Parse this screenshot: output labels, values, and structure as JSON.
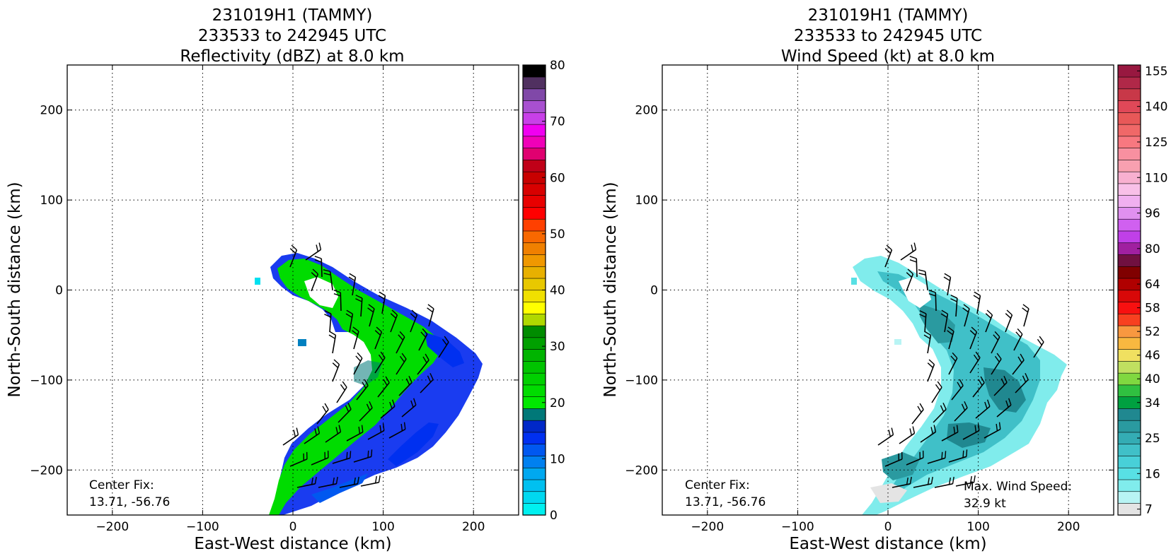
{
  "chart_data": [
    {
      "type": "heatmap",
      "title": [
        "231019H1 (TAMMY)",
        "233533 to 242945 UTC",
        "Reflectivity (dBZ) at 8.0 km"
      ],
      "xlabel": "East-West distance (km)",
      "ylabel": "North-South distance (km)",
      "xlim": [
        -250,
        250
      ],
      "ylim": [
        -250,
        250
      ],
      "xticks": [
        "−200",
        "−100",
        "0",
        "100",
        "200"
      ],
      "xtick_values": [
        -200,
        -100,
        0,
        100,
        200
      ],
      "yticks": [
        "−200",
        "−100",
        "0",
        "100",
        "200"
      ],
      "ytick_values": [
        -200,
        -100,
        0,
        100,
        200
      ],
      "grid": true,
      "colorbar": {
        "min": 0,
        "max": 80,
        "step": 2.5,
        "tick_labels": [
          "0",
          "10",
          "20",
          "30",
          "40",
          "50",
          "60",
          "70",
          "80"
        ],
        "tick_values": [
          0,
          10,
          20,
          30,
          40,
          50,
          60,
          70,
          80
        ],
        "colors": [
          "#00f0f0",
          "#00d8f0",
          "#00c0f0",
          "#00a8f0",
          "#0080f0",
          "#0058f0",
          "#0030f0",
          "#0028c8",
          "#007878",
          "#00e800",
          "#00dc00",
          "#00d000",
          "#00c400",
          "#00b400",
          "#00a000",
          "#008c00",
          "#b0d800",
          "#ffff00",
          "#f0e000",
          "#e8c800",
          "#e8b000",
          "#f09800",
          "#f08000",
          "#f86800",
          "#ff4000",
          "#ff0000",
          "#e80000",
          "#d80000",
          "#c80000",
          "#c00018",
          "#e00070",
          "#f000b8",
          "#f000f0",
          "#c840e8",
          "#a850d0",
          "#8048a8",
          "#503060",
          "#000000"
        ]
      },
      "annotations": [
        {
          "text": "Center Fix:"
        },
        {
          "text": "13.71, -56.76"
        }
      ]
    },
    {
      "type": "heatmap",
      "title": [
        "231019H1 (TAMMY)",
        "233533 to 242945 UTC",
        "Wind Speed (kt) at 8.0 km"
      ],
      "xlabel": "East-West distance (km)",
      "ylabel": "North-South distance (km)",
      "xlim": [
        -250,
        250
      ],
      "ylim": [
        -250,
        250
      ],
      "xticks": [
        "−200",
        "−100",
        "0",
        "100",
        "200"
      ],
      "xtick_values": [
        -200,
        -100,
        0,
        100,
        200
      ],
      "yticks": [
        "−200",
        "−100",
        "0",
        "100",
        "200"
      ],
      "ytick_values": [
        -200,
        -100,
        0,
        100,
        200
      ],
      "grid": true,
      "colorbar": {
        "tick_labels": [
          "7",
          "16",
          "25",
          "34",
          "40",
          "46",
          "52",
          "58",
          "64",
          "80",
          "96",
          "110",
          "125",
          "140",
          "155"
        ],
        "tick_index": [
          0,
          3,
          6,
          9,
          11,
          13,
          15,
          17,
          19,
          22,
          25,
          28,
          31,
          34,
          37
        ],
        "colors": [
          "#e4e4e4",
          "#b8f4f4",
          "#80ecec",
          "#58e0e4",
          "#48d0d8",
          "#40c0c8",
          "#34acb4",
          "#2a9aa0",
          "#208890",
          "#00a040",
          "#30c040",
          "#80d840",
          "#c0e060",
          "#f0e060",
          "#f8b840",
          "#f89840",
          "#f84020",
          "#f81010",
          "#d80808",
          "#b00000",
          "#800000",
          "#701040",
          "#a020a0",
          "#c040e8",
          "#d060f0",
          "#e090f0",
          "#f0b0f0",
          "#f8c0e8",
          "#f8b0d0",
          "#f8a0b0",
          "#f890a0",
          "#f87880",
          "#f06868",
          "#e85858",
          "#e04858",
          "#c83848",
          "#b02848",
          "#981840"
        ]
      },
      "annotations": [
        {
          "text": "Center Fix:"
        },
        {
          "text": "13.71, -56.76"
        },
        {
          "text": "Max. Wind Speed:"
        },
        {
          "text": "32.9 kt"
        }
      ]
    }
  ]
}
